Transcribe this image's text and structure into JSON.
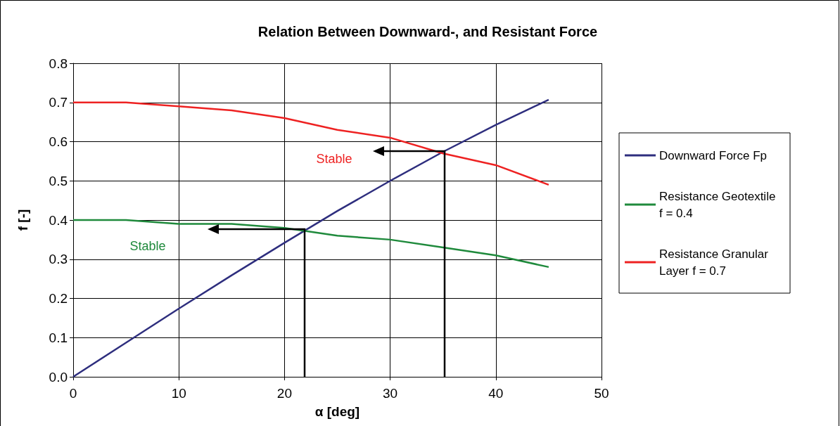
{
  "chart_data": {
    "type": "line",
    "title": "Relation Between Downward-, and Resistant Force",
    "xlabel": "α [deg]",
    "ylabel": "f [-]",
    "x": [
      0,
      5,
      10,
      15,
      20,
      25,
      30,
      35,
      40,
      45
    ],
    "series": [
      {
        "name": "Downward Force Fp",
        "color": "#2e2e7e",
        "values": [
          0,
          0.087,
          0.174,
          0.259,
          0.342,
          0.423,
          0.5,
          0.574,
          0.643,
          0.707
        ]
      },
      {
        "name": "Resistance Geotextile f = 0.4",
        "color": "#1f8a3c",
        "values": [
          0.4,
          0.4,
          0.39,
          0.39,
          0.38,
          0.36,
          0.35,
          0.33,
          0.31,
          0.28
        ]
      },
      {
        "name": "Resistance Granular Layer f = 0.7",
        "color": "#ee2222",
        "values": [
          0.7,
          0.7,
          0.69,
          0.68,
          0.66,
          0.63,
          0.61,
          0.57,
          0.54,
          0.49
        ]
      }
    ],
    "annotations": [
      "Stable",
      "Stable"
    ],
    "xlim": [
      0,
      50
    ],
    "xticks": [
      0,
      10,
      20,
      30,
      40,
      50
    ],
    "ylim": [
      0,
      0.8
    ],
    "yticks": [
      {
        "value": 0,
        "label": "0.0"
      },
      0.1,
      0.2,
      0.3,
      0.4,
      0.5,
      0.6,
      0.7,
      0.8
    ],
    "grid": true,
    "legend": "right",
    "marker": "none"
  }
}
